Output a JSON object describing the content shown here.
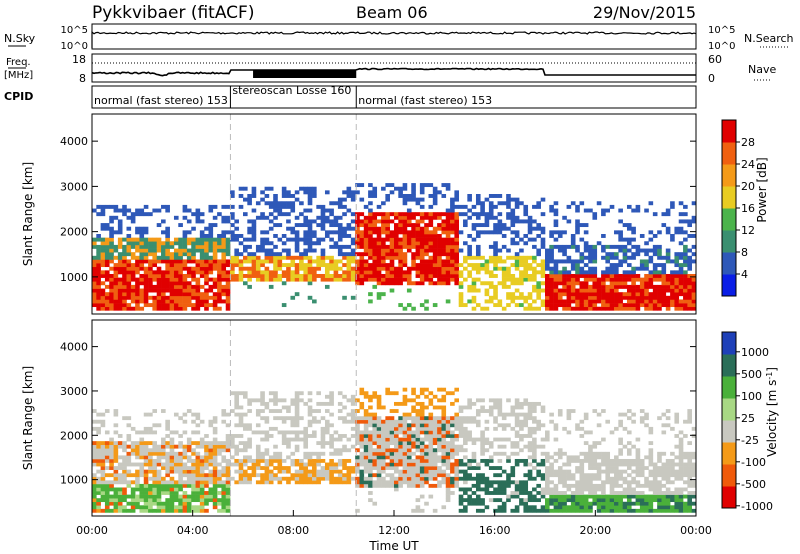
{
  "header": {
    "radar": "Pykkvibaer (fitACF)",
    "beam": "Beam 06",
    "date": "29/Nov/2015"
  },
  "panels": {
    "nsky": {
      "label": "N.Sky",
      "ticks": [
        "10^5",
        "10^0"
      ],
      "right_label": "N.Search",
      "right_ticks": [
        "10^5",
        "10^0"
      ]
    },
    "freq": {
      "label_top": "Freq.",
      "label_bottom": "[MHz]",
      "ticks": [
        "18",
        "8"
      ],
      "right_label": "Nave",
      "right_ticks": [
        "60",
        "0"
      ]
    },
    "cpid": {
      "label": "CPID",
      "segments": [
        {
          "text": "normal (fast stereo) 153",
          "start_h": 0
        },
        {
          "text": "stereoscan Losse 160",
          "start_h": 5.5
        },
        {
          "text": "normal (fast stereo) 153",
          "start_h": 10.5
        }
      ]
    }
  },
  "axes": {
    "xlabel": "Time UT",
    "x_ticks": [
      "00:00",
      "04:00",
      "08:00",
      "12:00",
      "16:00",
      "20:00",
      "00:00"
    ],
    "ylabel": "Slant Range [km]",
    "y_ticks": [
      "1000",
      "2000",
      "3000",
      "4000"
    ]
  },
  "colors": {
    "power": [
      "#0a1ee6",
      "#2e58b8",
      "#3a8f70",
      "#4bb34b",
      "#e8cc22",
      "#f49a18",
      "#f06010",
      "#e00000"
    ],
    "velocity": [
      "#e00000",
      "#f05a0a",
      "#f49a18",
      "#c8c8c0",
      "#a8d884",
      "#4ab03a",
      "#2a6e58",
      "#1e40b8"
    ]
  },
  "chart_data": [
    {
      "type": "heatmap",
      "name": "power",
      "ylabel": "Slant Range [km]",
      "xlim_h": [
        0,
        24
      ],
      "ylim_km": [
        180,
        4600
      ],
      "colorbar": {
        "label": "Power [dB]",
        "ticks": [
          "4",
          "8",
          "12",
          "16",
          "20",
          "24",
          "28"
        ],
        "range": [
          0,
          30
        ]
      }
    },
    {
      "type": "heatmap",
      "name": "velocity",
      "ylabel": "Slant Range [km]",
      "xlabel": "Time UT",
      "xlim_h": [
        0,
        24
      ],
      "ylim_km": [
        180,
        4600
      ],
      "colorbar": {
        "label": "Velocity [m s^-1]",
        "ticks": [
          "1000",
          "500",
          "100",
          "25",
          "-25",
          "-100",
          "-500",
          "-1000"
        ]
      }
    }
  ]
}
